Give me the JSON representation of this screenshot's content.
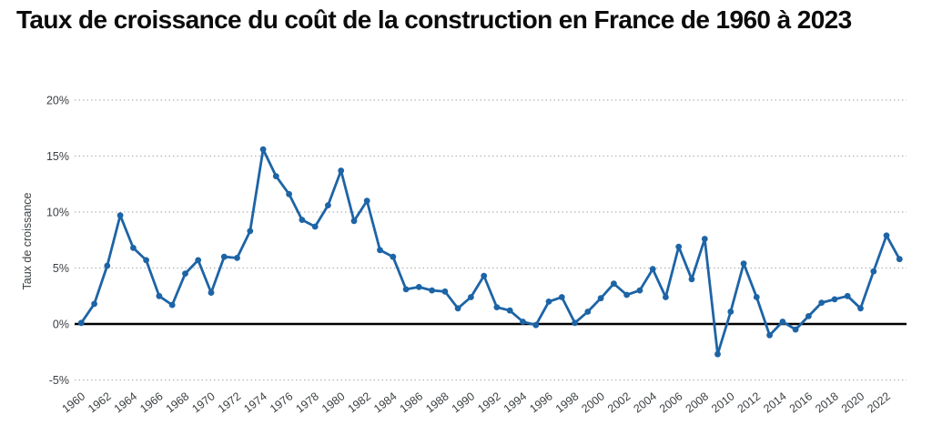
{
  "page": {
    "title": "Taux de croissance du coût de la construction en France de 1960 à 2023"
  },
  "chart_data": {
    "type": "line",
    "title": "Taux de croissance du coût de la construction en France de 1960 à 2023",
    "xlabel": "",
    "ylabel": "Taux de croissance",
    "x": [
      1960,
      1961,
      1962,
      1963,
      1964,
      1965,
      1966,
      1967,
      1968,
      1969,
      1970,
      1971,
      1972,
      1973,
      1974,
      1975,
      1976,
      1977,
      1978,
      1979,
      1980,
      1981,
      1982,
      1983,
      1984,
      1985,
      1986,
      1987,
      1988,
      1989,
      1990,
      1991,
      1992,
      1993,
      1994,
      1995,
      1996,
      1997,
      1998,
      1999,
      2000,
      2001,
      2002,
      2003,
      2004,
      2005,
      2006,
      2007,
      2008,
      2009,
      2010,
      2011,
      2012,
      2013,
      2014,
      2015,
      2016,
      2017,
      2018,
      2019,
      2020,
      2021,
      2022,
      2023
    ],
    "values": [
      0.1,
      1.8,
      5.2,
      9.7,
      6.8,
      5.7,
      2.5,
      1.7,
      4.5,
      5.7,
      2.8,
      6.0,
      5.9,
      8.3,
      15.6,
      13.2,
      11.6,
      9.3,
      8.7,
      10.6,
      13.7,
      9.2,
      11.0,
      6.6,
      6.0,
      3.1,
      3.3,
      3.0,
      2.9,
      1.4,
      2.4,
      4.3,
      1.5,
      1.2,
      0.2,
      -0.1,
      2.0,
      2.4,
      0.1,
      1.1,
      2.3,
      3.6,
      2.6,
      3.0,
      4.9,
      2.4,
      6.9,
      4.0,
      7.6,
      -2.7,
      1.1,
      5.4,
      2.4,
      -1.0,
      0.2,
      -0.5,
      0.7,
      1.9,
      2.2,
      2.5,
      1.4,
      4.7,
      7.9,
      5.8
    ],
    "ylim": [
      -5,
      20
    ],
    "y_ticks": [
      -5,
      0,
      5,
      10,
      15,
      20
    ],
    "y_tick_labels": [
      "-5%",
      "0%",
      "5%",
      "10%",
      "15%",
      "20%"
    ],
    "x_tick_step": 2,
    "x_tick_labels": [
      "1960",
      "1962",
      "1964",
      "1966",
      "1968",
      "1970",
      "1972",
      "1974",
      "1976",
      "1978",
      "1980",
      "1982",
      "1984",
      "1986",
      "1988",
      "1990",
      "1992",
      "1994",
      "1996",
      "1998",
      "2000",
      "2002",
      "2004",
      "2006",
      "2008",
      "2010",
      "2012",
      "2014",
      "2016",
      "2018",
      "2020",
      "2022"
    ],
    "grid": "horizontal-dotted",
    "legend": "none",
    "zero_line_color": "#000000",
    "gridline_color": "#b5b5b5",
    "line_color": "#1d64a6",
    "marker": "circle",
    "title_color": "#0c0c0c",
    "tick_label_color": "#3c4043"
  }
}
